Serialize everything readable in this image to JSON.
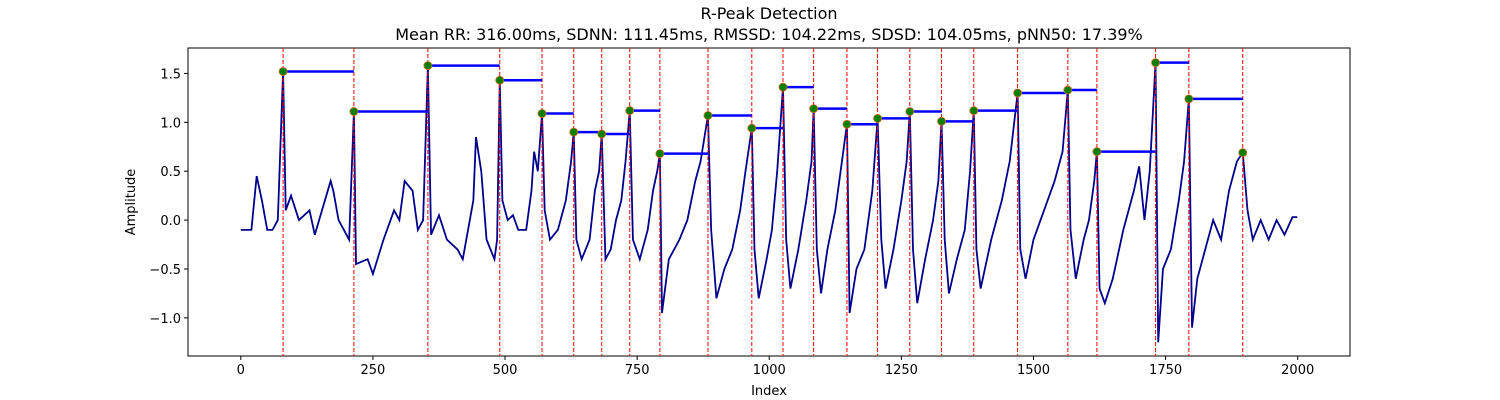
{
  "chart_data": {
    "type": "line",
    "title": "R-Peak Detection",
    "subtitle": "Mean RR: 316.00ms, SDNN: 111.45ms, RMSSD: 104.22ms, SDSD: 104.05ms, pNN50: 17.39%",
    "xlabel": "Index",
    "ylabel": "Amplitude",
    "xlim": [
      -99.95,
      2098.95
    ],
    "ylim": [
      -1.39,
      1.76
    ],
    "xticks": [
      0,
      250,
      500,
      750,
      1000,
      1250,
      1500,
      1750,
      2000
    ],
    "yticks": [
      {
        "value": -1.0,
        "label": "−1.0"
      },
      {
        "value": -0.5,
        "label": "−0.5"
      },
      {
        "value": 0.0,
        "label": "0.0"
      },
      0.5,
      {
        "value": 1.0,
        "label": "1.0"
      },
      1.5
    ],
    "signal": {
      "color": "#00008b",
      "x": [
        0,
        20,
        30,
        40,
        50,
        60,
        70,
        80,
        85,
        95,
        110,
        130,
        140,
        170,
        175,
        185,
        200,
        205,
        214,
        218,
        240,
        250,
        270,
        290,
        300,
        310,
        325,
        335,
        345,
        354,
        360,
        375,
        390,
        410,
        420,
        440,
        445,
        455,
        465,
        480,
        485,
        490,
        495,
        505,
        515,
        525,
        540,
        550,
        555,
        562,
        570,
        575,
        585,
        600,
        615,
        625,
        630,
        635,
        645,
        660,
        670,
        678,
        683,
        690,
        700,
        710,
        720,
        728,
        736,
        742,
        755,
        770,
        780,
        788,
        793,
        797,
        810,
        830,
        845,
        860,
        870,
        884,
        890,
        900,
        915,
        930,
        945,
        955,
        967,
        972,
        980,
        995,
        1005,
        1015,
        1026,
        1032,
        1040,
        1055,
        1070,
        1080,
        1084,
        1090,
        1098,
        1110,
        1125,
        1135,
        1147,
        1152,
        1165,
        1180,
        1195,
        1205,
        1212,
        1220,
        1235,
        1250,
        1260,
        1266,
        1272,
        1280,
        1295,
        1310,
        1320,
        1326,
        1332,
        1340,
        1355,
        1370,
        1380,
        1387,
        1392,
        1400,
        1420,
        1440,
        1455,
        1470,
        1475,
        1485,
        1500,
        1520,
        1540,
        1555,
        1565,
        1570,
        1580,
        1595,
        1605,
        1615,
        1620,
        1625,
        1635,
        1650,
        1670,
        1690,
        1700,
        1710,
        1720,
        1731,
        1736,
        1745,
        1760,
        1775,
        1785,
        1794,
        1800,
        1810,
        1825,
        1840,
        1855,
        1870,
        1885,
        1896,
        1905,
        1915,
        1930,
        1945,
        1960,
        1975,
        1990,
        1999
      ],
      "values": [
        -0.1,
        -0.1,
        0.45,
        0.2,
        -0.1,
        -0.1,
        0.0,
        1.52,
        0.1,
        0.25,
        0.0,
        0.1,
        -0.15,
        0.4,
        0.3,
        0.0,
        -0.15,
        -0.2,
        1.11,
        -0.45,
        -0.4,
        -0.55,
        -0.2,
        0.1,
        0.0,
        0.4,
        0.3,
        -0.1,
        0.0,
        1.58,
        -0.15,
        0.05,
        -0.2,
        -0.3,
        -0.4,
        0.2,
        0.85,
        0.5,
        -0.2,
        -0.4,
        -0.2,
        1.43,
        0.2,
        0.0,
        0.05,
        -0.1,
        -0.1,
        0.3,
        0.7,
        0.5,
        1.09,
        0.1,
        -0.2,
        -0.1,
        0.2,
        0.6,
        0.9,
        -0.2,
        -0.4,
        -0.2,
        0.3,
        0.5,
        0.88,
        -0.4,
        -0.3,
        0.0,
        0.2,
        0.6,
        1.12,
        -0.2,
        -0.4,
        -0.1,
        0.3,
        0.5,
        0.68,
        -0.95,
        -0.4,
        -0.2,
        0.0,
        0.4,
        0.6,
        1.07,
        -0.1,
        -0.8,
        -0.5,
        -0.3,
        0.1,
        0.5,
        0.94,
        -0.3,
        -0.8,
        -0.4,
        -0.1,
        0.5,
        1.36,
        -0.2,
        -0.7,
        -0.3,
        0.2,
        0.6,
        1.14,
        -0.3,
        -0.75,
        -0.3,
        0.1,
        0.5,
        0.98,
        -0.95,
        -0.5,
        -0.3,
        0.3,
        1.04,
        -0.2,
        -0.7,
        -0.3,
        0.2,
        0.6,
        1.11,
        -0.3,
        -0.85,
        -0.4,
        0.0,
        0.4,
        1.01,
        -0.2,
        -0.75,
        -0.4,
        -0.1,
        0.5,
        1.12,
        -0.3,
        -0.7,
        -0.2,
        0.2,
        0.6,
        1.3,
        -0.3,
        -0.6,
        -0.2,
        0.1,
        0.4,
        0.7,
        1.33,
        -0.1,
        -0.6,
        -0.2,
        0.0,
        0.4,
        0.7,
        -0.7,
        -0.85,
        -0.6,
        -0.1,
        0.3,
        0.55,
        0.0,
        0.5,
        1.61,
        -1.25,
        -0.5,
        -0.3,
        0.2,
        0.6,
        1.24,
        -1.1,
        -0.6,
        -0.3,
        0.0,
        -0.2,
        0.3,
        0.6,
        0.69,
        0.1,
        -0.2,
        0.0,
        -0.2,
        0.0,
        -0.15,
        0.03,
        0.03
      ]
    },
    "peaks": {
      "color": "#008000",
      "line_color": "#ff0000",
      "interval_color": "#0000ff",
      "x": [
        80,
        214,
        354,
        490,
        570,
        630,
        683,
        736,
        793,
        884,
        967,
        1026,
        1084,
        1147,
        1205,
        1266,
        1326,
        1387,
        1470,
        1565,
        1620,
        1731,
        1794,
        1896
      ],
      "values": [
        1.52,
        1.11,
        1.58,
        1.43,
        1.09,
        0.9,
        0.88,
        1.12,
        0.68,
        1.07,
        0.94,
        1.36,
        1.14,
        0.98,
        1.04,
        1.11,
        1.01,
        1.12,
        1.3,
        1.33,
        0.7,
        1.61,
        1.24,
        0.69
      ]
    }
  }
}
